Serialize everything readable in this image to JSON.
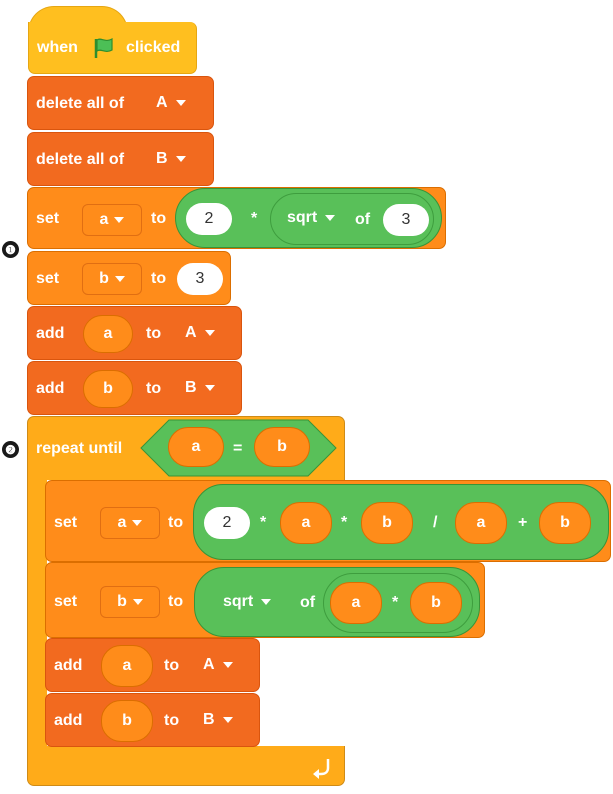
{
  "hat": {
    "when": "when",
    "clicked": "clicked",
    "flag_icon": "green-flag-icon"
  },
  "list_a": "A",
  "list_b": "B",
  "var_a": "a",
  "var_b": "b",
  "kw": {
    "delete_all_of": "delete all of",
    "set": "set",
    "to": "to",
    "add": "add",
    "of": "of",
    "repeat_until": "repeat until"
  },
  "func": "sqrt",
  "ops": {
    "mul": "*",
    "div": "/",
    "plus": "+",
    "eq": "="
  },
  "nums": {
    "two": "2",
    "three": "3"
  },
  "steps": [
    "❶",
    "❷"
  ],
  "colors": {
    "event": "#FFBF1F",
    "list": "#F26A1F",
    "variable": "#FF8C1A",
    "operator": "#59C059",
    "control": "#FFAB19"
  }
}
